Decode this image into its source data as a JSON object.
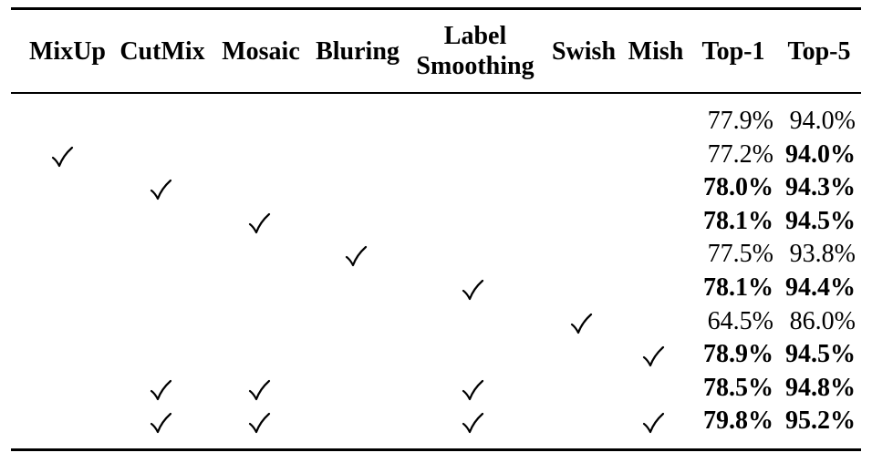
{
  "table": {
    "headers": [
      {
        "key": "mixup",
        "label": "MixUp"
      },
      {
        "key": "cutmix",
        "label": "CutMix"
      },
      {
        "key": "mosaic",
        "label": "Mosaic"
      },
      {
        "key": "bluring",
        "label": "Bluring"
      },
      {
        "key": "label_smoothing",
        "label_line1": "Label",
        "label_line2": "Smoothing"
      },
      {
        "key": "swish",
        "label": "Swish"
      },
      {
        "key": "mish",
        "label": "Mish"
      },
      {
        "key": "top1",
        "label": "Top-1"
      },
      {
        "key": "top5",
        "label": "Top-5"
      }
    ],
    "check_glyph": "✓",
    "rows": [
      {
        "checks": [],
        "top1": "77.9%",
        "top1_bold": false,
        "top5": "94.0%",
        "top5_bold": false
      },
      {
        "checks": [
          "mixup"
        ],
        "top1": "77.2%",
        "top1_bold": false,
        "top5": "94.0%",
        "top5_bold": true
      },
      {
        "checks": [
          "cutmix"
        ],
        "top1": "78.0%",
        "top1_bold": true,
        "top5": "94.3%",
        "top5_bold": true
      },
      {
        "checks": [
          "mosaic"
        ],
        "top1": "78.1%",
        "top1_bold": true,
        "top5": "94.5%",
        "top5_bold": true
      },
      {
        "checks": [
          "bluring"
        ],
        "top1": "77.5%",
        "top1_bold": false,
        "top5": "93.8%",
        "top5_bold": false
      },
      {
        "checks": [
          "label_smoothing"
        ],
        "top1": "78.1%",
        "top1_bold": true,
        "top5": "94.4%",
        "top5_bold": true
      },
      {
        "checks": [
          "swish"
        ],
        "top1": "64.5%",
        "top1_bold": false,
        "top5": "86.0%",
        "top5_bold": false
      },
      {
        "checks": [
          "mish"
        ],
        "top1": "78.9%",
        "top1_bold": true,
        "top5": "94.5%",
        "top5_bold": true
      },
      {
        "checks": [
          "cutmix",
          "mosaic",
          "label_smoothing"
        ],
        "top1": "78.5%",
        "top1_bold": true,
        "top5": "94.8%",
        "top5_bold": true
      },
      {
        "checks": [
          "cutmix",
          "mosaic",
          "label_smoothing",
          "mish"
        ],
        "top1": "79.8%",
        "top1_bold": true,
        "top5": "95.2%",
        "top5_bold": true
      }
    ]
  }
}
